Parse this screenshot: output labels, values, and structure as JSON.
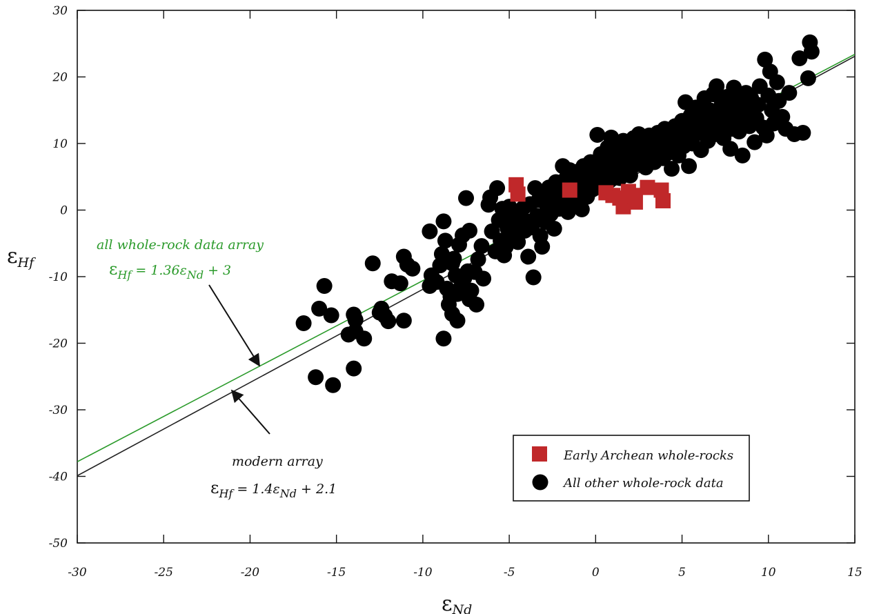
{
  "chart_data": {
    "type": "scatter",
    "xlabel": "εNd",
    "ylabel": "εHf",
    "xlim": [
      -30,
      15
    ],
    "ylim": [
      -50,
      30
    ],
    "x_ticks": [
      -30,
      -25,
      -20,
      -15,
      -10,
      -5,
      0,
      5,
      10,
      15
    ],
    "y_ticks": [
      -50,
      -40,
      -30,
      -20,
      -10,
      0,
      10,
      20,
      30
    ],
    "x_tick_labels": [
      "-30",
      "-25",
      "-20",
      "-15",
      "-10",
      "-5",
      "0",
      "5",
      "10",
      "15"
    ],
    "y_tick_labels": [
      "-50",
      "-40",
      "-30",
      "-20",
      "-10",
      "0",
      "10",
      "20",
      "30"
    ],
    "grid": false,
    "legend_position": "bottom-right",
    "lines": [
      {
        "name": "all whole-rock data array",
        "slope": 1.36,
        "intercept": 3,
        "color": "#2a9a2a"
      },
      {
        "name": "modern array",
        "slope": 1.4,
        "intercept": 2.1,
        "color": "#222222"
      }
    ],
    "annotations": [
      {
        "key": "allwr",
        "label": "all whole-rock data array",
        "eq_main": "ε",
        "eq_sub1": "Hf",
        "eq_mid": " = 1.36ε",
        "eq_sub2": "Nd",
        "eq_end": " + 3",
        "color": "#2a9a2a"
      },
      {
        "key": "modern",
        "label": "modern array",
        "eq_main": "ε",
        "eq_sub1": "Hf",
        "eq_mid": " = 1.4ε",
        "eq_sub2": "Nd",
        "eq_end": " + 2.1",
        "color": "#111111"
      }
    ],
    "series": [
      {
        "name": "Early Archean whole-rocks",
        "marker": "square",
        "color": "#c0282a",
        "points": [
          [
            -4.6,
            3.8
          ],
          [
            -4.5,
            2.4
          ],
          [
            -1.5,
            3.0
          ],
          [
            0.6,
            2.6
          ],
          [
            1.0,
            2.2
          ],
          [
            1.4,
            1.8
          ],
          [
            1.6,
            0.5
          ],
          [
            1.9,
            2.8
          ],
          [
            2.2,
            2.2
          ],
          [
            2.3,
            1.2
          ],
          [
            3.0,
            3.4
          ],
          [
            3.8,
            3.0
          ],
          [
            3.9,
            1.4
          ]
        ]
      },
      {
        "name": "All other whole-rock data",
        "marker": "circle",
        "color": "#000000",
        "points": [
          [
            -16.9,
            -17.0
          ],
          [
            -16.2,
            -25.1
          ],
          [
            -16.0,
            -14.8
          ],
          [
            -15.7,
            -11.4
          ],
          [
            -15.3,
            -15.8
          ],
          [
            -15.2,
            -26.3
          ],
          [
            -14.3,
            -18.7
          ],
          [
            -14.0,
            -23.8
          ],
          [
            -14.0,
            -15.7
          ],
          [
            -13.9,
            -16.5
          ],
          [
            -13.9,
            -18.2
          ],
          [
            -13.4,
            -19.3
          ],
          [
            -12.9,
            -8.0
          ],
          [
            -12.5,
            -15.4
          ],
          [
            -12.4,
            -14.8
          ],
          [
            -12.2,
            -15.9
          ],
          [
            -12.0,
            -16.7
          ],
          [
            -11.8,
            -10.7
          ],
          [
            -11.3,
            -11.0
          ],
          [
            -11.1,
            -16.6
          ],
          [
            -11.1,
            -7.0
          ],
          [
            -10.9,
            -8.2
          ],
          [
            -10.6,
            -8.8
          ],
          [
            -9.6,
            -3.2
          ],
          [
            -9.6,
            -11.4
          ],
          [
            -9.5,
            -9.8
          ],
          [
            -9.2,
            -10.8
          ],
          [
            -9.0,
            -8.3
          ],
          [
            -8.9,
            -6.6
          ],
          [
            -8.8,
            -19.3
          ],
          [
            -8.8,
            -1.7
          ],
          [
            -8.7,
            -4.6
          ],
          [
            -8.6,
            -11.8
          ],
          [
            -8.5,
            -14.2
          ],
          [
            -8.4,
            -13.0
          ],
          [
            -8.3,
            -15.6
          ],
          [
            -8.3,
            -8.0
          ],
          [
            -8.2,
            -7.3
          ],
          [
            -8.1,
            -9.8
          ],
          [
            -8.0,
            -16.6
          ],
          [
            -8.0,
            -12.6
          ],
          [
            -7.9,
            -5.2
          ],
          [
            -7.8,
            -11.6
          ],
          [
            -7.7,
            -3.8
          ],
          [
            -7.6,
            -10.2
          ],
          [
            -7.5,
            1.8
          ],
          [
            -7.4,
            -9.2
          ],
          [
            -7.3,
            -3.1
          ],
          [
            -7.3,
            -13.4
          ],
          [
            -7.2,
            -12.1
          ],
          [
            -7.0,
            -9.3
          ],
          [
            -6.9,
            -14.2
          ],
          [
            -6.8,
            -7.4
          ],
          [
            -6.6,
            -5.4
          ],
          [
            -6.5,
            -10.3
          ],
          [
            -6.2,
            0.8
          ],
          [
            -6.1,
            1.9
          ],
          [
            -6.0,
            -3.2
          ],
          [
            -5.8,
            -6.2
          ],
          [
            -5.7,
            3.3
          ],
          [
            -5.6,
            -1.5
          ],
          [
            -5.5,
            -4.6
          ],
          [
            -5.4,
            0.2
          ],
          [
            -5.3,
            -6.8
          ],
          [
            -5.2,
            -5.5
          ],
          [
            -5.1,
            -2.7
          ],
          [
            -5.0,
            0.5
          ],
          [
            -4.9,
            -3.8
          ],
          [
            -4.8,
            -1.2
          ],
          [
            -4.6,
            -0.6
          ],
          [
            -4.5,
            -4.8
          ],
          [
            -4.4,
            -2.2
          ],
          [
            -4.2,
            0.3
          ],
          [
            -4.1,
            -3.1
          ],
          [
            -4.0,
            -1.7
          ],
          [
            -3.9,
            -7.0
          ],
          [
            -3.8,
            0.9
          ],
          [
            -3.7,
            -2.6
          ],
          [
            -3.6,
            -10.1
          ],
          [
            -3.5,
            3.3
          ],
          [
            -3.4,
            -0.9
          ],
          [
            -3.3,
            1.5
          ],
          [
            -3.2,
            -3.9
          ],
          [
            -3.1,
            -5.5
          ],
          [
            -3.0,
            2.2
          ],
          [
            -2.9,
            -1.8
          ],
          [
            -2.8,
            0.5
          ],
          [
            -2.7,
            3.4
          ],
          [
            -2.6,
            -0.6
          ],
          [
            -2.5,
            1.7
          ],
          [
            -2.4,
            -2.8
          ],
          [
            -2.3,
            4.2
          ],
          [
            -2.1,
            0.2
          ],
          [
            -2.0,
            2.9
          ],
          [
            -1.9,
            6.6
          ],
          [
            -1.8,
            1.1
          ],
          [
            -1.7,
            4.8
          ],
          [
            -1.6,
            -0.3
          ],
          [
            -1.5,
            6.0
          ],
          [
            -1.4,
            2.3
          ],
          [
            -1.2,
            4.4
          ],
          [
            -1.1,
            1.4
          ],
          [
            -1.0,
            5.8
          ],
          [
            -0.9,
            3.6
          ],
          [
            -0.8,
            0.1
          ],
          [
            -0.7,
            6.6
          ],
          [
            -0.6,
            4.1
          ],
          [
            -0.5,
            2.0
          ],
          [
            -0.4,
            5.4
          ],
          [
            -0.3,
            7.2
          ],
          [
            -0.2,
            3.1
          ],
          [
            -0.1,
            6.0
          ],
          [
            0.0,
            4.6
          ],
          [
            0.1,
            11.3
          ],
          [
            0.2,
            5.6
          ],
          [
            0.3,
            8.4
          ],
          [
            0.4,
            3.8
          ],
          [
            0.5,
            7.0
          ],
          [
            0.6,
            6.2
          ],
          [
            0.7,
            9.4
          ],
          [
            0.8,
            4.4
          ],
          [
            0.9,
            10.9
          ],
          [
            1.0,
            5.8
          ],
          [
            1.1,
            7.8
          ],
          [
            1.2,
            6.6
          ],
          [
            1.3,
            9.0
          ],
          [
            1.4,
            4.8
          ],
          [
            1.5,
            8.2
          ],
          [
            1.6,
            10.4
          ],
          [
            1.7,
            6.0
          ],
          [
            1.8,
            7.4
          ],
          [
            1.9,
            9.8
          ],
          [
            2.0,
            5.2
          ],
          [
            2.1,
            8.6
          ],
          [
            2.2,
            10.8
          ],
          [
            2.3,
            6.8
          ],
          [
            2.4,
            9.2
          ],
          [
            2.5,
            11.4
          ],
          [
            2.6,
            7.6
          ],
          [
            2.7,
            8.8
          ],
          [
            2.8,
            10.0
          ],
          [
            2.9,
            6.4
          ],
          [
            3.0,
            9.6
          ],
          [
            3.1,
            11.2
          ],
          [
            3.2,
            8.0
          ],
          [
            3.3,
            10.6
          ],
          [
            3.4,
            7.2
          ],
          [
            3.5,
            9.0
          ],
          [
            3.6,
            11.6
          ],
          [
            3.7,
            8.4
          ],
          [
            3.8,
            10.2
          ],
          [
            3.9,
            7.8
          ],
          [
            4.0,
            12.2
          ],
          [
            4.1,
            9.4
          ],
          [
            4.2,
            8.6
          ],
          [
            4.3,
            11.0
          ],
          [
            4.4,
            6.2
          ],
          [
            4.5,
            9.8
          ],
          [
            4.6,
            12.6
          ],
          [
            4.7,
            10.4
          ],
          [
            4.8,
            8.2
          ],
          [
            4.9,
            11.8
          ],
          [
            5.0,
            13.4
          ],
          [
            5.1,
            9.6
          ],
          [
            5.2,
            16.2
          ],
          [
            5.3,
            11.2
          ],
          [
            5.4,
            6.6
          ],
          [
            5.5,
            14.2
          ],
          [
            5.6,
            10.0
          ],
          [
            5.7,
            12.4
          ],
          [
            5.8,
            15.4
          ],
          [
            5.9,
            11.6
          ],
          [
            6.0,
            13.0
          ],
          [
            6.1,
            9.0
          ],
          [
            6.2,
            14.6
          ],
          [
            6.3,
            16.8
          ],
          [
            6.4,
            12.0
          ],
          [
            6.5,
            10.4
          ],
          [
            6.6,
            15.0
          ],
          [
            6.7,
            13.6
          ],
          [
            6.8,
            17.4
          ],
          [
            6.9,
            11.4
          ],
          [
            7.0,
            18.6
          ],
          [
            7.1,
            14.4
          ],
          [
            7.2,
            12.8
          ],
          [
            7.3,
            16.0
          ],
          [
            7.4,
            10.8
          ],
          [
            7.5,
            13.4
          ],
          [
            7.6,
            17.0
          ],
          [
            7.7,
            15.2
          ],
          [
            7.8,
            9.2
          ],
          [
            7.9,
            12.2
          ],
          [
            8.0,
            18.4
          ],
          [
            8.1,
            14.0
          ],
          [
            8.2,
            16.4
          ],
          [
            8.3,
            11.8
          ],
          [
            8.4,
            15.6
          ],
          [
            8.5,
            8.2
          ],
          [
            8.6,
            13.2
          ],
          [
            8.7,
            17.6
          ],
          [
            8.8,
            14.8
          ],
          [
            8.9,
            12.6
          ],
          [
            9.0,
            16.8
          ],
          [
            9.2,
            10.2
          ],
          [
            9.3,
            13.8
          ],
          [
            9.4,
            15.8
          ],
          [
            9.5,
            18.6
          ],
          [
            9.7,
            12.4
          ],
          [
            9.8,
            22.6
          ],
          [
            9.9,
            11.2
          ],
          [
            10.0,
            17.2
          ],
          [
            10.1,
            20.8
          ],
          [
            10.2,
            15.0
          ],
          [
            10.3,
            13.0
          ],
          [
            10.5,
            19.2
          ],
          [
            10.6,
            16.4
          ],
          [
            10.8,
            14.0
          ],
          [
            11.0,
            12.2
          ],
          [
            11.2,
            17.6
          ],
          [
            11.5,
            11.4
          ],
          [
            11.8,
            22.8
          ],
          [
            12.0,
            11.6
          ],
          [
            12.3,
            19.8
          ],
          [
            12.4,
            25.2
          ],
          [
            12.5,
            23.8
          ]
        ]
      }
    ]
  }
}
